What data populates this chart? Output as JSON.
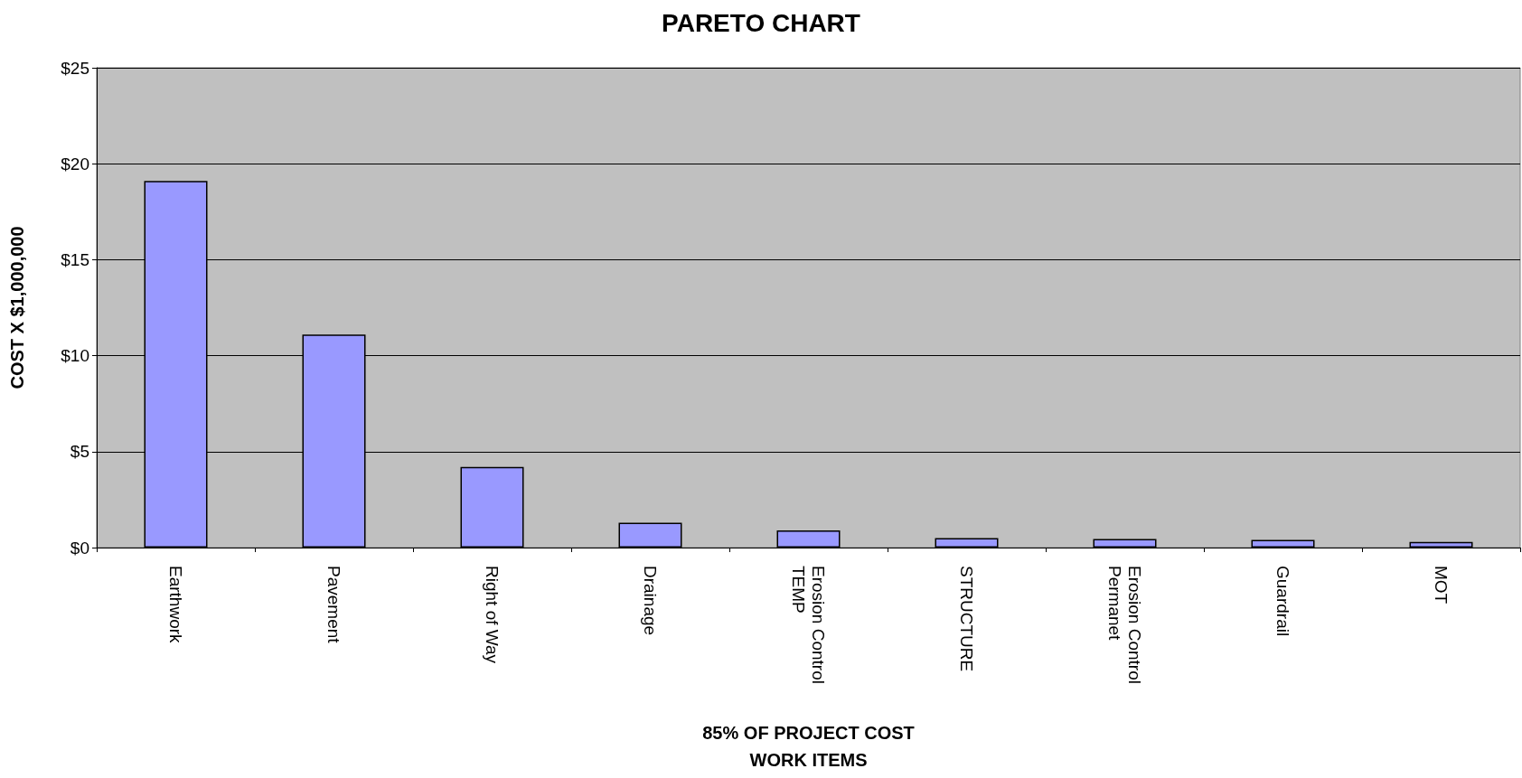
{
  "chart_data": {
    "type": "bar",
    "title": "PARETO CHART",
    "xlabel": "85% OF PROJECT COST\nWORK ITEMS",
    "ylabel": "COST X $1,000,000",
    "categories": [
      "Earthwork",
      "Pavement",
      "Right of Way",
      "Drainage",
      "Erosion Control\nTEMP",
      "STRUCTURE",
      "Erosion Control\nPermanet",
      "Guardrail",
      "MOT"
    ],
    "values": [
      19.1,
      11.1,
      4.2,
      1.3,
      0.9,
      0.5,
      0.45,
      0.4,
      0.3
    ],
    "color": "#9999ff",
    "ylim": [
      0,
      25
    ],
    "yticks": [
      {
        "value": 0,
        "label": "$0"
      },
      {
        "value": 5,
        "label": "$5"
      },
      {
        "value": 10,
        "label": "$10"
      },
      {
        "value": 15,
        "label": "$15"
      },
      {
        "value": 20,
        "label": "$20"
      },
      {
        "value": 25,
        "label": "$25"
      }
    ],
    "grid": "y"
  }
}
